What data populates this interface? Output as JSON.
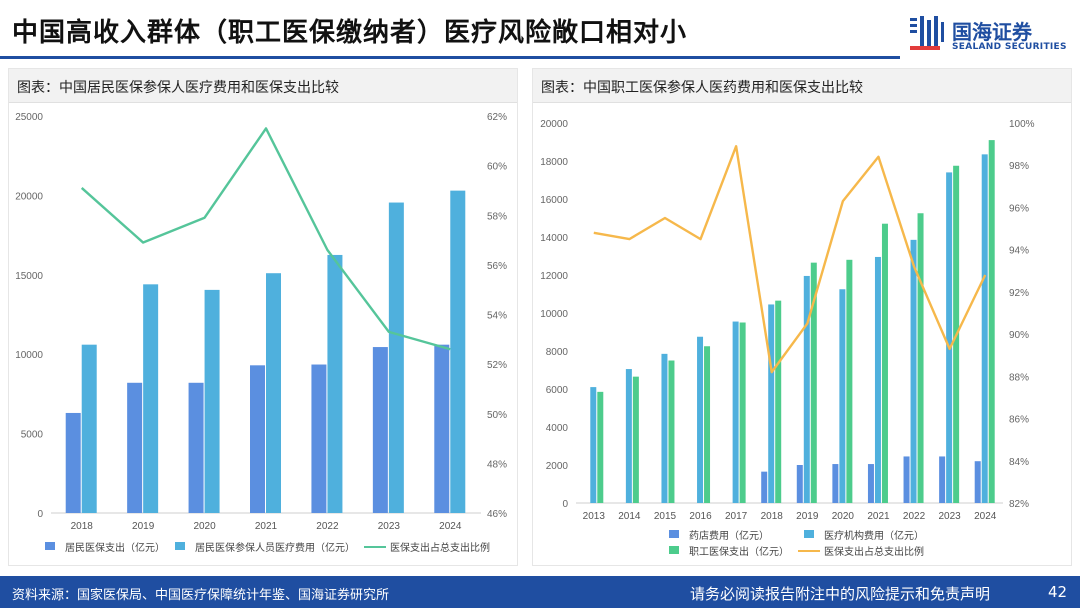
{
  "header": {
    "title": "中国高收入群体（职工医保缴纳者）医疗风险敞口相对小",
    "logo_cn": "国海证券",
    "logo_en": "SEALAND SECURITIES"
  },
  "footer": {
    "source": "资料来源：国家医保局、中国医疗保障统计年鉴、国海证券研究所",
    "disclaimer": "请务必阅读报告附注中的风险提示和免责声明",
    "page": "42"
  },
  "colors": {
    "brand": "#1f4ea1",
    "bar_dark": "#5b8fe0",
    "bar_light": "#4fb0dd",
    "bar_green": "#4dcc8c",
    "line_green": "#55c59a",
    "line_orange": "#f6b84b"
  },
  "chart_data": [
    {
      "type": "bar",
      "title": "图表：中国居民医保参保人医疗费用和医保支出比较",
      "categories": [
        "2018",
        "2019",
        "2020",
        "2021",
        "2022",
        "2023",
        "2024"
      ],
      "ylim": [
        0,
        25000
      ],
      "yticks": [
        "0",
        "5000",
        "10000",
        "15000",
        "20000",
        "25000"
      ],
      "y2lim": [
        46,
        62
      ],
      "y2ticks": [
        "46%",
        "48%",
        "50%",
        "52%",
        "54%",
        "56%",
        "58%",
        "60%",
        "62%"
      ],
      "series": [
        {
          "name": "居民医保支出（亿元）",
          "kind": "bar",
          "axis": "left",
          "color": "#5b8fe0",
          "values": [
            6300,
            8200,
            8200,
            9300,
            9350,
            10450,
            10600
          ]
        },
        {
          "name": "居民医保参保人员医疗费用（亿元）",
          "kind": "bar",
          "axis": "left",
          "color": "#4fb0dd",
          "values": [
            10600,
            14400,
            14050,
            15100,
            16250,
            19550,
            20300
          ]
        },
        {
          "name": "医保支出占总支出比例",
          "kind": "line",
          "axis": "right",
          "color": "#55c59a",
          "values": [
            59.1,
            56.9,
            57.9,
            61.5,
            56.6,
            53.3,
            52.6
          ]
        }
      ],
      "legend": [
        "居民医保支出（亿元）",
        "居民医保参保人员医疗费用（亿元）",
        "医保支出占总支出比例"
      ]
    },
    {
      "type": "bar",
      "title": "图表：中国职工医保参保人医药费用和医保支出比较",
      "categories": [
        "2013",
        "2014",
        "2015",
        "2016",
        "2017",
        "2018",
        "2019",
        "2020",
        "2021",
        "2022",
        "2023",
        "2024"
      ],
      "ylim": [
        0,
        20000
      ],
      "yticks": [
        "0",
        "2000",
        "4000",
        "6000",
        "8000",
        "10000",
        "12000",
        "14000",
        "16000",
        "18000",
        "20000"
      ],
      "y2lim": [
        82,
        100
      ],
      "y2ticks": [
        "82%",
        "84%",
        "86%",
        "88%",
        "90%",
        "92%",
        "94%",
        "96%",
        "98%",
        "100%"
      ],
      "series": [
        {
          "name": "药店费用（亿元）",
          "kind": "bar",
          "axis": "left",
          "color": "#5b8fe0",
          "values": [
            null,
            null,
            null,
            null,
            null,
            1650,
            2000,
            2050,
            2050,
            2450,
            2450,
            2200
          ]
        },
        {
          "name": "医疗机构费用（亿元）",
          "kind": "bar",
          "axis": "left",
          "color": "#4fb0dd",
          "values": [
            6100,
            7050,
            7850,
            8750,
            9550,
            10450,
            11950,
            11250,
            12950,
            13850,
            17400,
            18350
          ]
        },
        {
          "name": "职工医保支出（亿元）",
          "kind": "bar",
          "axis": "left",
          "color": "#4dcc8c",
          "values": [
            5850,
            6650,
            7500,
            8250,
            9500,
            10650,
            12650,
            12800,
            14700,
            15250,
            17750,
            19100
          ]
        },
        {
          "name": "医保支出占总支出比例",
          "kind": "line",
          "axis": "right",
          "color": "#f6b84b",
          "values": [
            94.8,
            94.5,
            95.5,
            94.5,
            98.9,
            88.2,
            90.5,
            96.3,
            98.4,
            93.2,
            89.3,
            92.8
          ]
        }
      ],
      "legend": [
        "药店费用（亿元）",
        "医疗机构费用（亿元）",
        "职工医保支出（亿元）",
        "医保支出占总支出比例"
      ]
    }
  ]
}
